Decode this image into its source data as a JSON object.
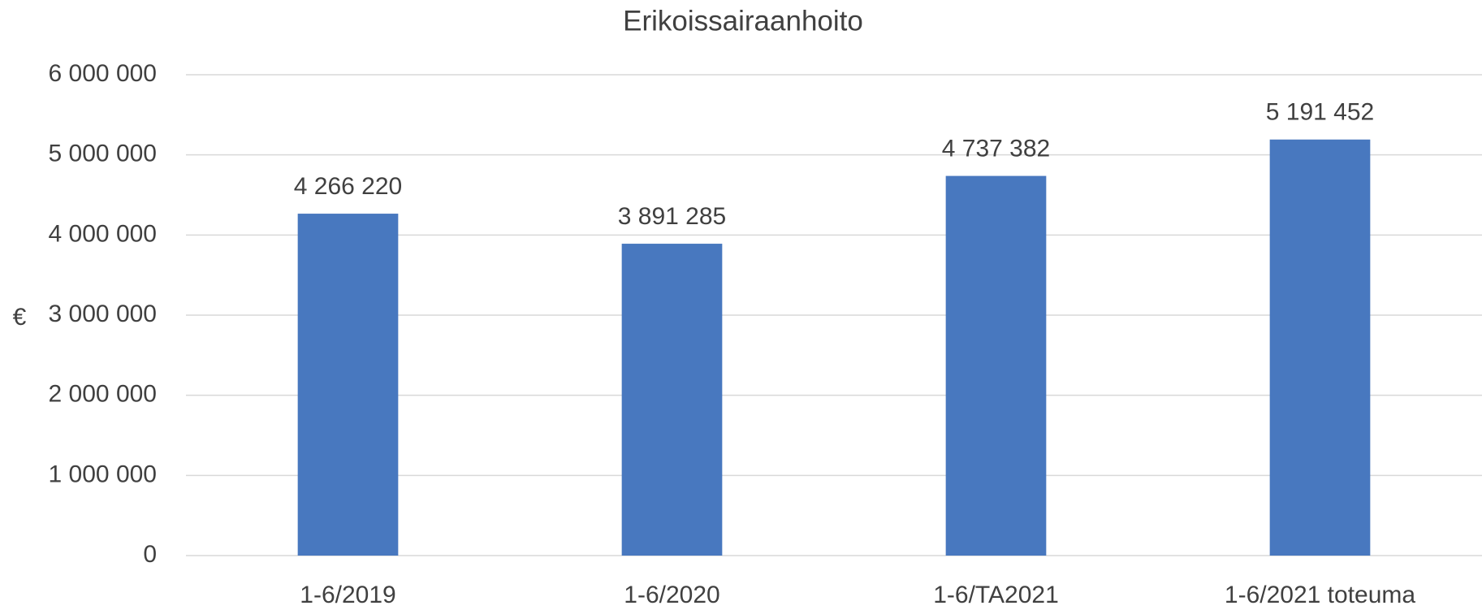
{
  "chart_data": {
    "type": "bar",
    "title": "Erikoissairaanhoito",
    "y_label": "€",
    "categories": [
      "1-6/2019",
      "1-6/2020",
      "1-6/TA2021",
      "1-6/2021 toteuma"
    ],
    "values": [
      4266220,
      3891285,
      4737382,
      5191452
    ],
    "value_labels": [
      "4 266 220",
      "3 891 285",
      "4 737 382",
      "5 191 452"
    ],
    "color": "#4878bf",
    "ylim": [
      0,
      6000000
    ],
    "yticks": [
      0,
      {
        "value": 1000000,
        "label": "1 000 000"
      },
      {
        "value": 2000000,
        "label": "2 000 000"
      },
      {
        "value": 3000000,
        "label": "3 000 000"
      },
      {
        "value": 4000000,
        "label": "4 000 000"
      },
      {
        "value": 5000000,
        "label": "5 000 000"
      },
      {
        "value": 6000000,
        "label": "6 000 000"
      }
    ],
    "grid": true
  }
}
